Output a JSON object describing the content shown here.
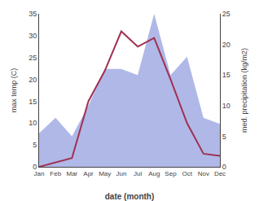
{
  "chart_data": {
    "type": "line",
    "xlabel": "date (month)",
    "ylabel": "max temp (C)",
    "y2label": "med. precipitation (kg/m2)",
    "categories": [
      "Jan",
      "Feb",
      "Mar",
      "Apr",
      "May",
      "Jun",
      "Jul",
      "Aug",
      "Sep",
      "Oct",
      "Nov",
      "Dec"
    ],
    "series": [
      {
        "type": "area",
        "axis": "y2",
        "color": "#b0b8e8",
        "values": [
          5.5,
          8.0,
          5.0,
          10.0,
          16.0,
          16.0,
          15.0,
          25.0,
          15.0,
          18.0,
          8.0,
          7.0
        ]
      },
      {
        "type": "line",
        "color": "#a03050",
        "values": [
          0.0,
          1.0,
          2.0,
          15.0,
          22.0,
          31.0,
          27.5,
          29.5,
          20.0,
          10.0,
          3.0,
          2.5
        ]
      }
    ],
    "ylim": [
      0,
      35
    ],
    "yticks": [
      0,
      5,
      10,
      15,
      20,
      25,
      30,
      35
    ],
    "y2lim": [
      0,
      25
    ],
    "y2ticks": [
      0,
      5,
      10,
      15,
      20,
      25
    ],
    "grid": false
  }
}
